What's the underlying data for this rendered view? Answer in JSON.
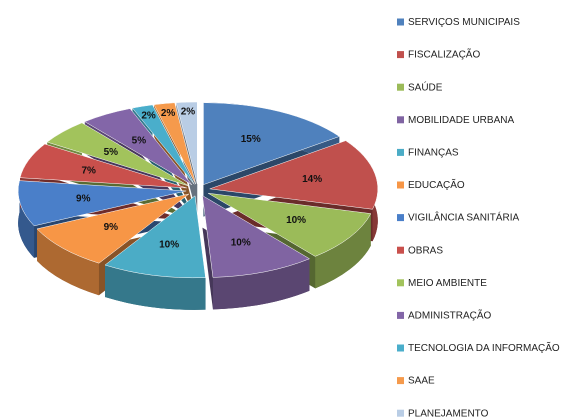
{
  "chart_data": {
    "type": "pie",
    "categories": [
      "SERVIÇOS MUNICIPAIS",
      "FISCALIZAÇÃO",
      "SAÚDE",
      "MOBILIDADE URBANA",
      "FINANÇAS",
      "EDUCAÇÃO",
      "VIGILÂNCIA SANITÁRIA",
      "OBRAS",
      "MEIO AMBIENTE",
      "ADMINISTRAÇÃO",
      "TECNOLOGIA DA INFORMAÇÃO",
      "SAAE",
      "PLANEJAMENTO"
    ],
    "values": [
      15,
      14,
      10,
      10,
      10,
      9,
      9,
      7,
      5,
      5,
      2,
      2,
      2
    ],
    "value_labels": [
      "15%",
      "14%",
      "10%",
      "10%",
      "10%",
      "9%",
      "9%",
      "7%",
      "5%",
      "5%",
      "2%",
      "2%",
      "2%"
    ],
    "colors": [
      "#4f81bd",
      "#c0504d",
      "#9bbb59",
      "#8064a2",
      "#4bacc6",
      "#f79646",
      "#4a7fc9",
      "#c9504c",
      "#a2c35c",
      "#8366a8",
      "#4aaecb",
      "#f59a4c",
      "#b9cde5"
    ],
    "legend": "right"
  }
}
